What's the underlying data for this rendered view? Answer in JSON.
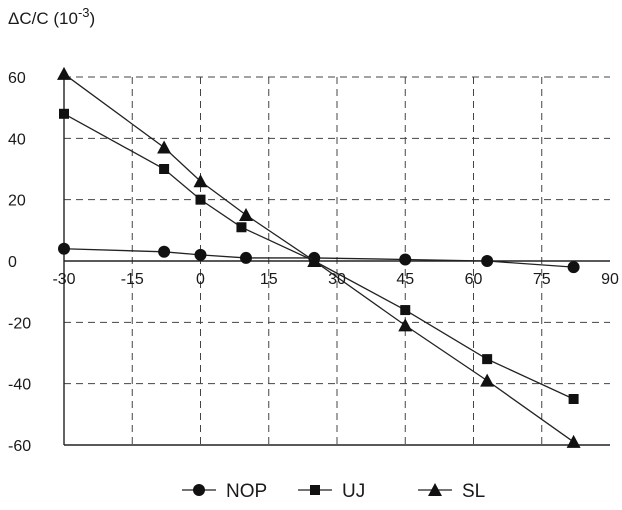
{
  "chart_data": {
    "type": "line",
    "ylabel": {
      "base": "ΔC/C (10",
      "exp": "-3",
      "close": ")"
    },
    "xlim": [
      -30,
      90
    ],
    "ylim": [
      -60,
      60
    ],
    "x_ticks": [
      -30,
      -15,
      0,
      15,
      30,
      45,
      60,
      75,
      90
    ],
    "x_tick_labels": [
      "-30",
      "-15",
      "0",
      "15",
      "30",
      "45",
      "60",
      "75",
      "90"
    ],
    "y_ticks": [
      60,
      40,
      20,
      0,
      -20,
      -40,
      -60
    ],
    "y_tick_labels": [
      "60",
      "40",
      "20",
      "0",
      "-20",
      "-40",
      "-60"
    ],
    "grid": "dashed",
    "legend_position": "bottom",
    "series": [
      {
        "name": "NOP",
        "marker": "circle",
        "points": [
          [
            -30,
            4
          ],
          [
            -8,
            3
          ],
          [
            0,
            2
          ],
          [
            10,
            1
          ],
          [
            25,
            1
          ],
          [
            45,
            0.5
          ],
          [
            63,
            0
          ],
          [
            82,
            -2
          ]
        ]
      },
      {
        "name": "UJ",
        "marker": "square",
        "points": [
          [
            -30,
            48
          ],
          [
            -8,
            30
          ],
          [
            0,
            20
          ],
          [
            9,
            11
          ],
          [
            25,
            0
          ],
          [
            45,
            -16
          ],
          [
            63,
            -32
          ],
          [
            82,
            -45
          ]
        ]
      },
      {
        "name": "SL",
        "marker": "triangle",
        "points": [
          [
            -30,
            61
          ],
          [
            -8,
            37
          ],
          [
            0,
            26
          ],
          [
            10,
            15
          ],
          [
            25,
            0
          ],
          [
            45,
            -21
          ],
          [
            63,
            -39
          ],
          [
            82,
            -59
          ]
        ]
      }
    ]
  }
}
